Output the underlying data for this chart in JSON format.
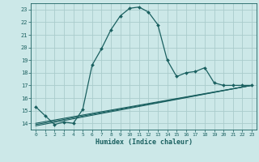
{
  "title": "",
  "xlabel": "Humidex (Indice chaleur)",
  "bg_color": "#cce8e8",
  "grid_color": "#aacccc",
  "line_color": "#1a6060",
  "xlim": [
    -0.5,
    23.5
  ],
  "ylim": [
    13.5,
    23.5
  ],
  "xticks": [
    0,
    1,
    2,
    3,
    4,
    5,
    6,
    7,
    8,
    9,
    10,
    11,
    12,
    13,
    14,
    15,
    16,
    17,
    18,
    19,
    20,
    21,
    22,
    23
  ],
  "yticks": [
    14,
    15,
    16,
    17,
    18,
    19,
    20,
    21,
    22,
    23
  ],
  "main_line": {
    "x": [
      0,
      1,
      2,
      3,
      4,
      5,
      6,
      7,
      8,
      9,
      10,
      11,
      12,
      13,
      14,
      15,
      16,
      17,
      18,
      19,
      20,
      21,
      22,
      23
    ],
    "y": [
      15.3,
      14.6,
      13.9,
      14.1,
      14.0,
      15.1,
      18.6,
      19.9,
      21.4,
      22.5,
      23.1,
      23.2,
      22.8,
      21.8,
      19.0,
      17.7,
      18.0,
      18.1,
      18.4,
      17.2,
      17.0,
      17.0,
      17.0,
      17.0
    ]
  },
  "lower_lines": [
    {
      "x": [
        0,
        23
      ],
      "y": [
        14.0,
        17.0
      ]
    },
    {
      "x": [
        0,
        23
      ],
      "y": [
        13.9,
        17.0
      ]
    },
    {
      "x": [
        0,
        23
      ],
      "y": [
        13.8,
        17.0
      ]
    }
  ]
}
